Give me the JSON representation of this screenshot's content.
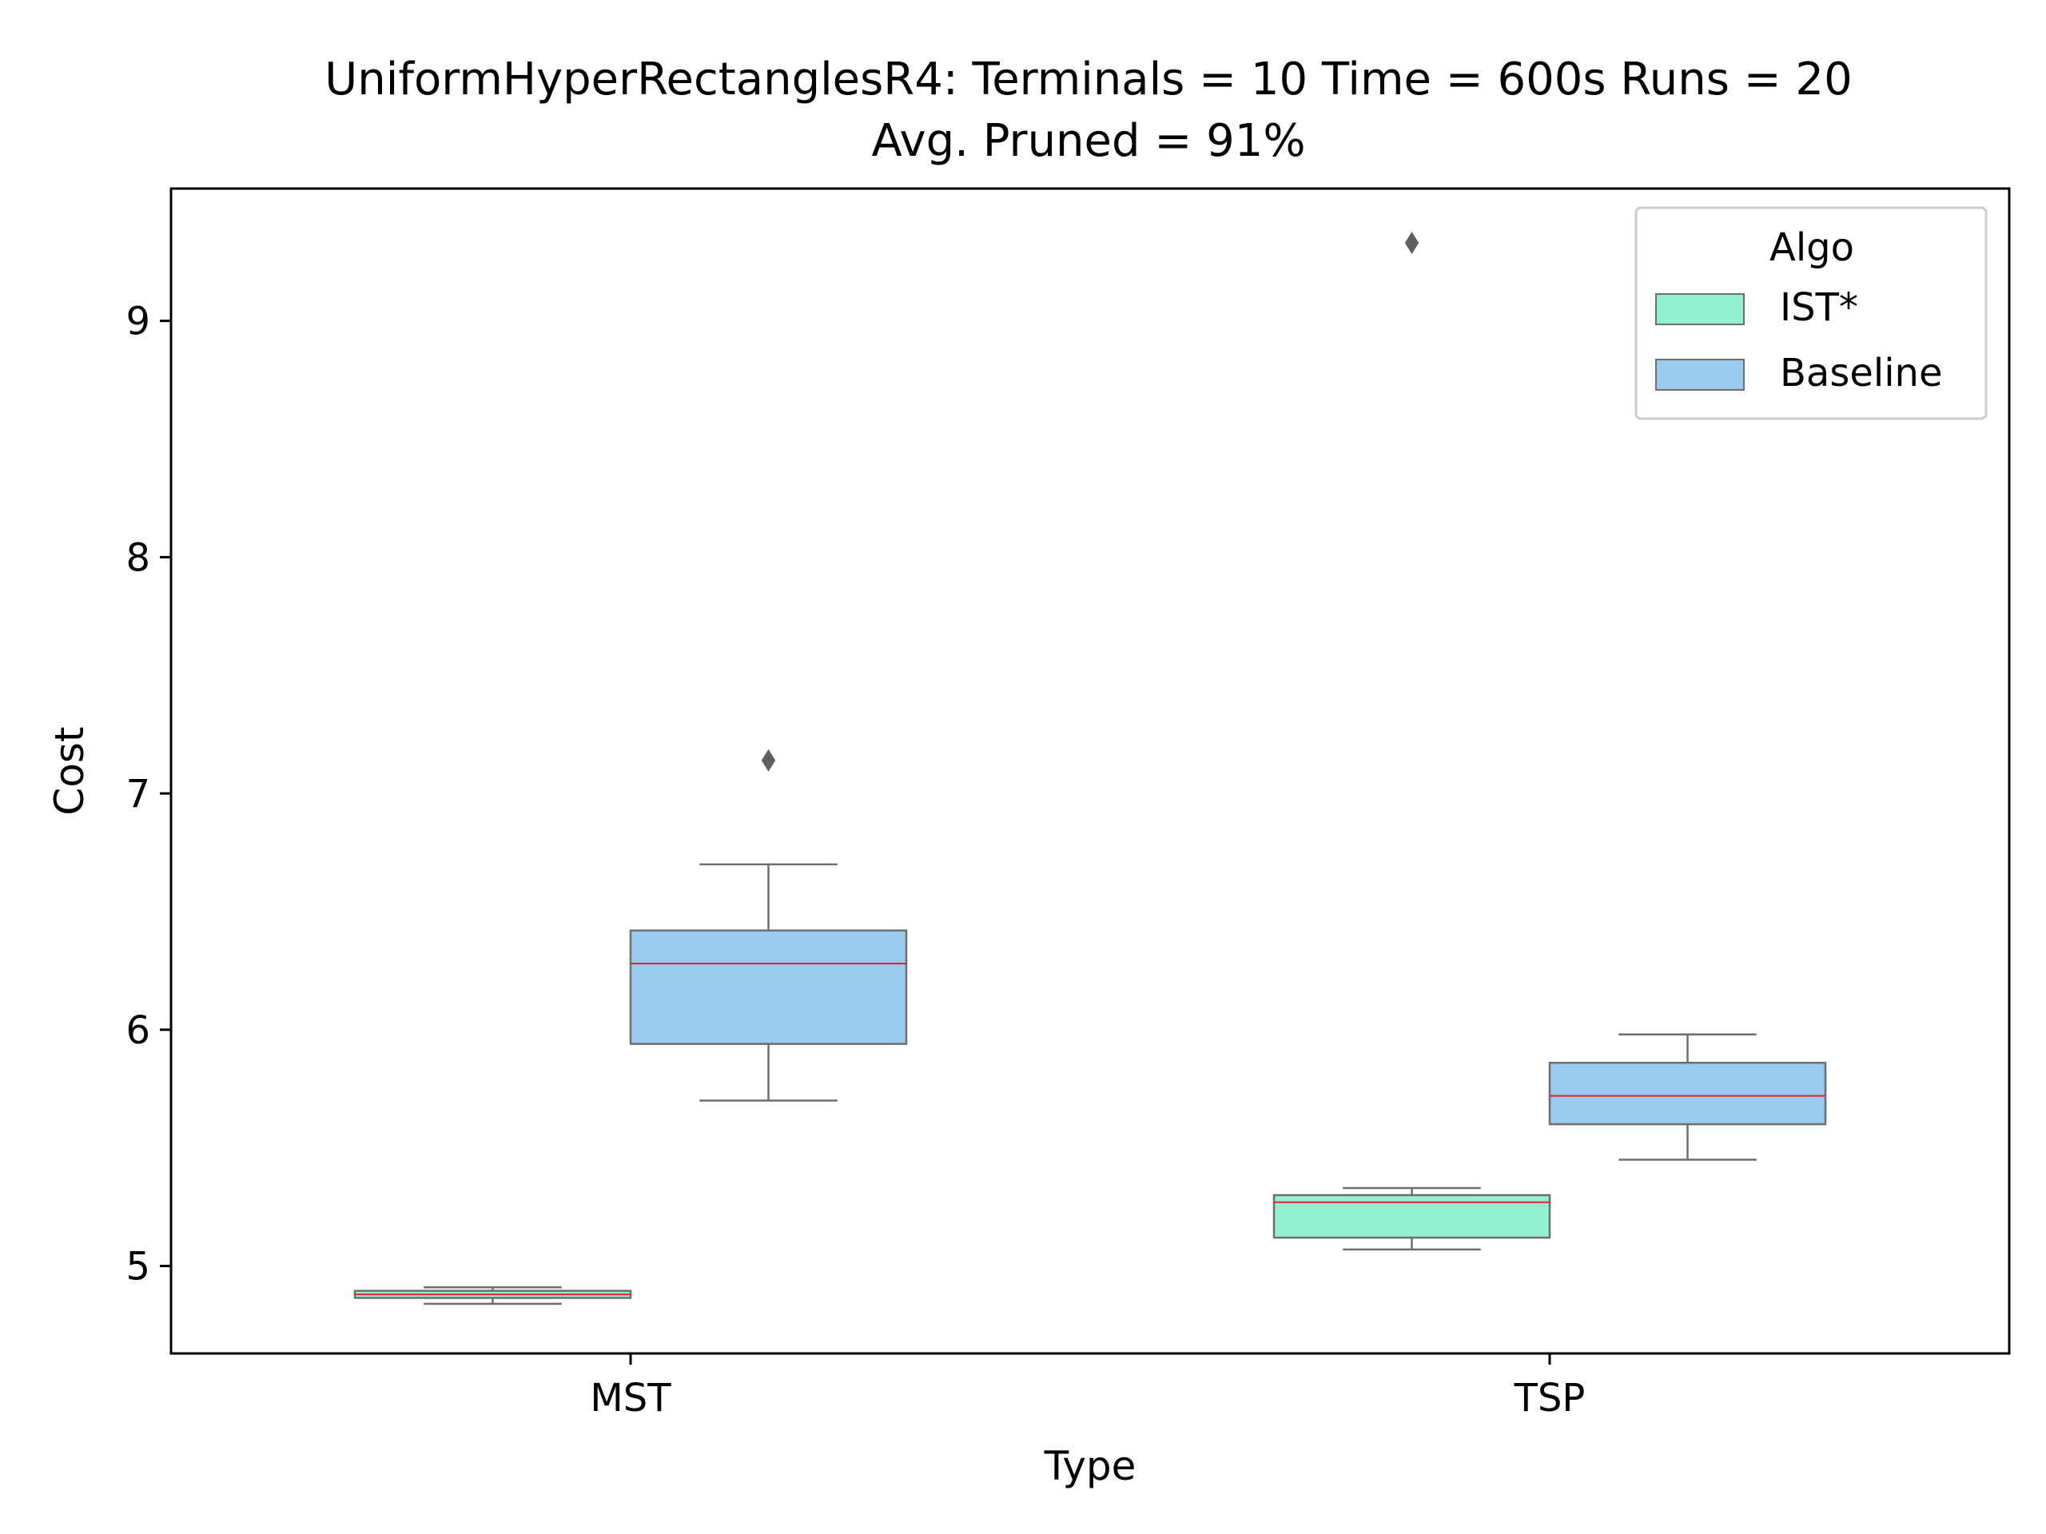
{
  "chart_data": {
    "type": "box",
    "title": "UniformHyperRectanglesR4:  Terminals = 10  Time = 600s  Runs = 20",
    "subtitle": "Avg. Pruned = 91%",
    "xlabel": "Type",
    "ylabel": "Cost",
    "categories": [
      "MST",
      "TSP"
    ],
    "ylim": [
      4.63,
      9.56
    ],
    "yticks": [
      5,
      6,
      7,
      8,
      9
    ],
    "grid": false,
    "legend": {
      "title": "Algo",
      "placement": "top-right"
    },
    "colors": {
      "IST*": "#8ff0d2",
      "Baseline": "#98cbee",
      "median": "#e8202a",
      "edge": "#6e6e6e"
    },
    "series": [
      {
        "name": "IST*",
        "boxes": [
          {
            "category": "MST",
            "whisker_low": 4.84,
            "q1": 4.865,
            "median": 4.88,
            "q3": 4.895,
            "whisker_high": 4.91,
            "outliers": []
          },
          {
            "category": "TSP",
            "whisker_low": 5.07,
            "q1": 5.12,
            "median": 5.27,
            "q3": 5.3,
            "whisker_high": 5.33,
            "outliers": [
              9.33
            ]
          }
        ]
      },
      {
        "name": "Baseline",
        "boxes": [
          {
            "category": "MST",
            "whisker_low": 5.7,
            "q1": 5.94,
            "median": 6.28,
            "q3": 6.42,
            "whisker_high": 6.7,
            "outliers": [
              7.14
            ]
          },
          {
            "category": "TSP",
            "whisker_low": 5.45,
            "q1": 5.6,
            "median": 5.72,
            "q3": 5.86,
            "whisker_high": 5.98,
            "outliers": []
          }
        ]
      }
    ]
  }
}
